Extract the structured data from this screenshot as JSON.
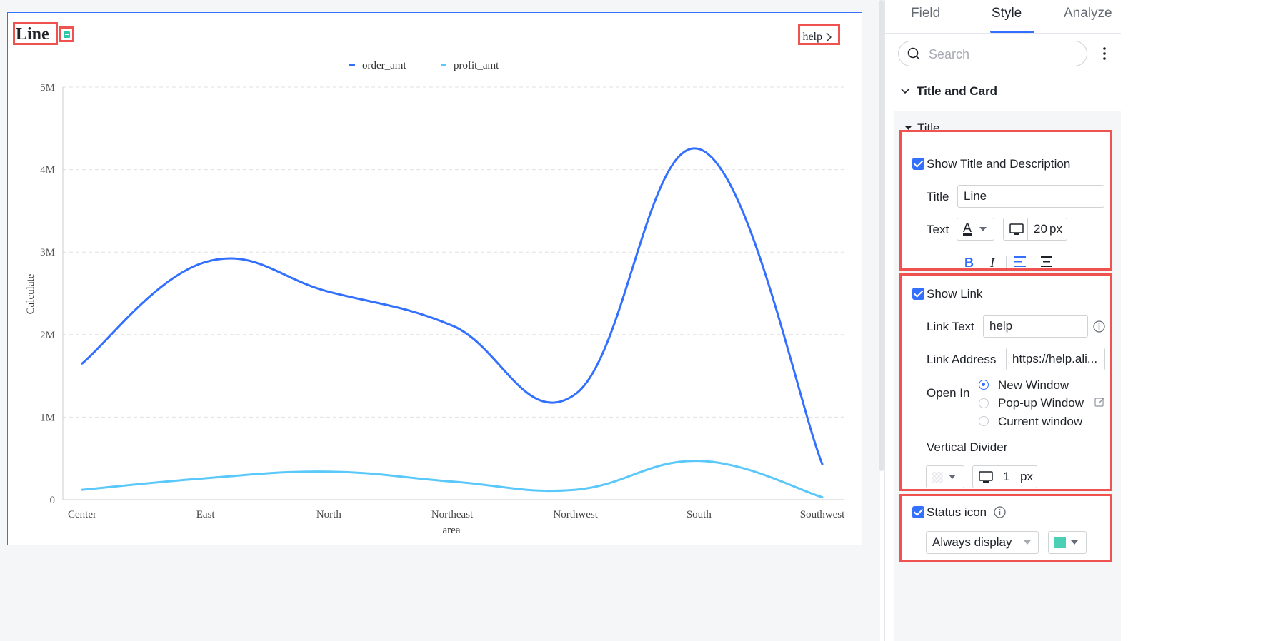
{
  "chart_card": {
    "title": "Line",
    "link_text": "help",
    "status_color": "#2ec7a7"
  },
  "chart_data": {
    "type": "line",
    "categories": [
      "Center",
      "East",
      "North",
      "Northeast",
      "Northwest",
      "South",
      "Southwest"
    ],
    "series": [
      {
        "name": "order_amt",
        "color": "#3370ff",
        "values": [
          1650000,
          2880000,
          2520000,
          2110000,
          1280000,
          4250000,
          430000
        ]
      },
      {
        "name": "profit_amt",
        "color": "#5ac8fa",
        "values": [
          120000,
          260000,
          340000,
          220000,
          120000,
          470000,
          30000
        ]
      }
    ],
    "xlabel": "area",
    "ylabel": "Calculate",
    "ylim": [
      0,
      5000000
    ],
    "yticks": [
      "0",
      "1M",
      "2M",
      "3M",
      "4M",
      "5M"
    ],
    "grid": true,
    "legend_position": "top-center",
    "curve": "smooth"
  },
  "panel": {
    "tabs": [
      "Field",
      "Style",
      "Analyze"
    ],
    "active_tab": "Style",
    "search_placeholder": "Search",
    "section": "Title and Card",
    "subsection": "Title",
    "title_group": {
      "checkbox_label": "Show Title and Description",
      "title_label": "Title",
      "title_value": "Line",
      "text_label": "Text",
      "font_color_glyph": "A",
      "font_size": "20",
      "font_unit": "px",
      "bold": "B",
      "italic": "I"
    },
    "link_group": {
      "checkbox_label": "Show Link",
      "link_text_label": "Link Text",
      "link_text_value": "help",
      "link_address_label": "Link Address",
      "link_address_value": "https://help.ali...",
      "open_in_label": "Open In",
      "options": [
        "New Window",
        "Pop-up Window",
        "Current window"
      ],
      "selected_option": "New Window",
      "divider_label": "Vertical Divider",
      "divider_size": "1",
      "divider_unit": "px"
    },
    "status_group": {
      "checkbox_label": "Status icon",
      "display_value": "Always display",
      "icon_color": "#2ec7a7"
    }
  }
}
